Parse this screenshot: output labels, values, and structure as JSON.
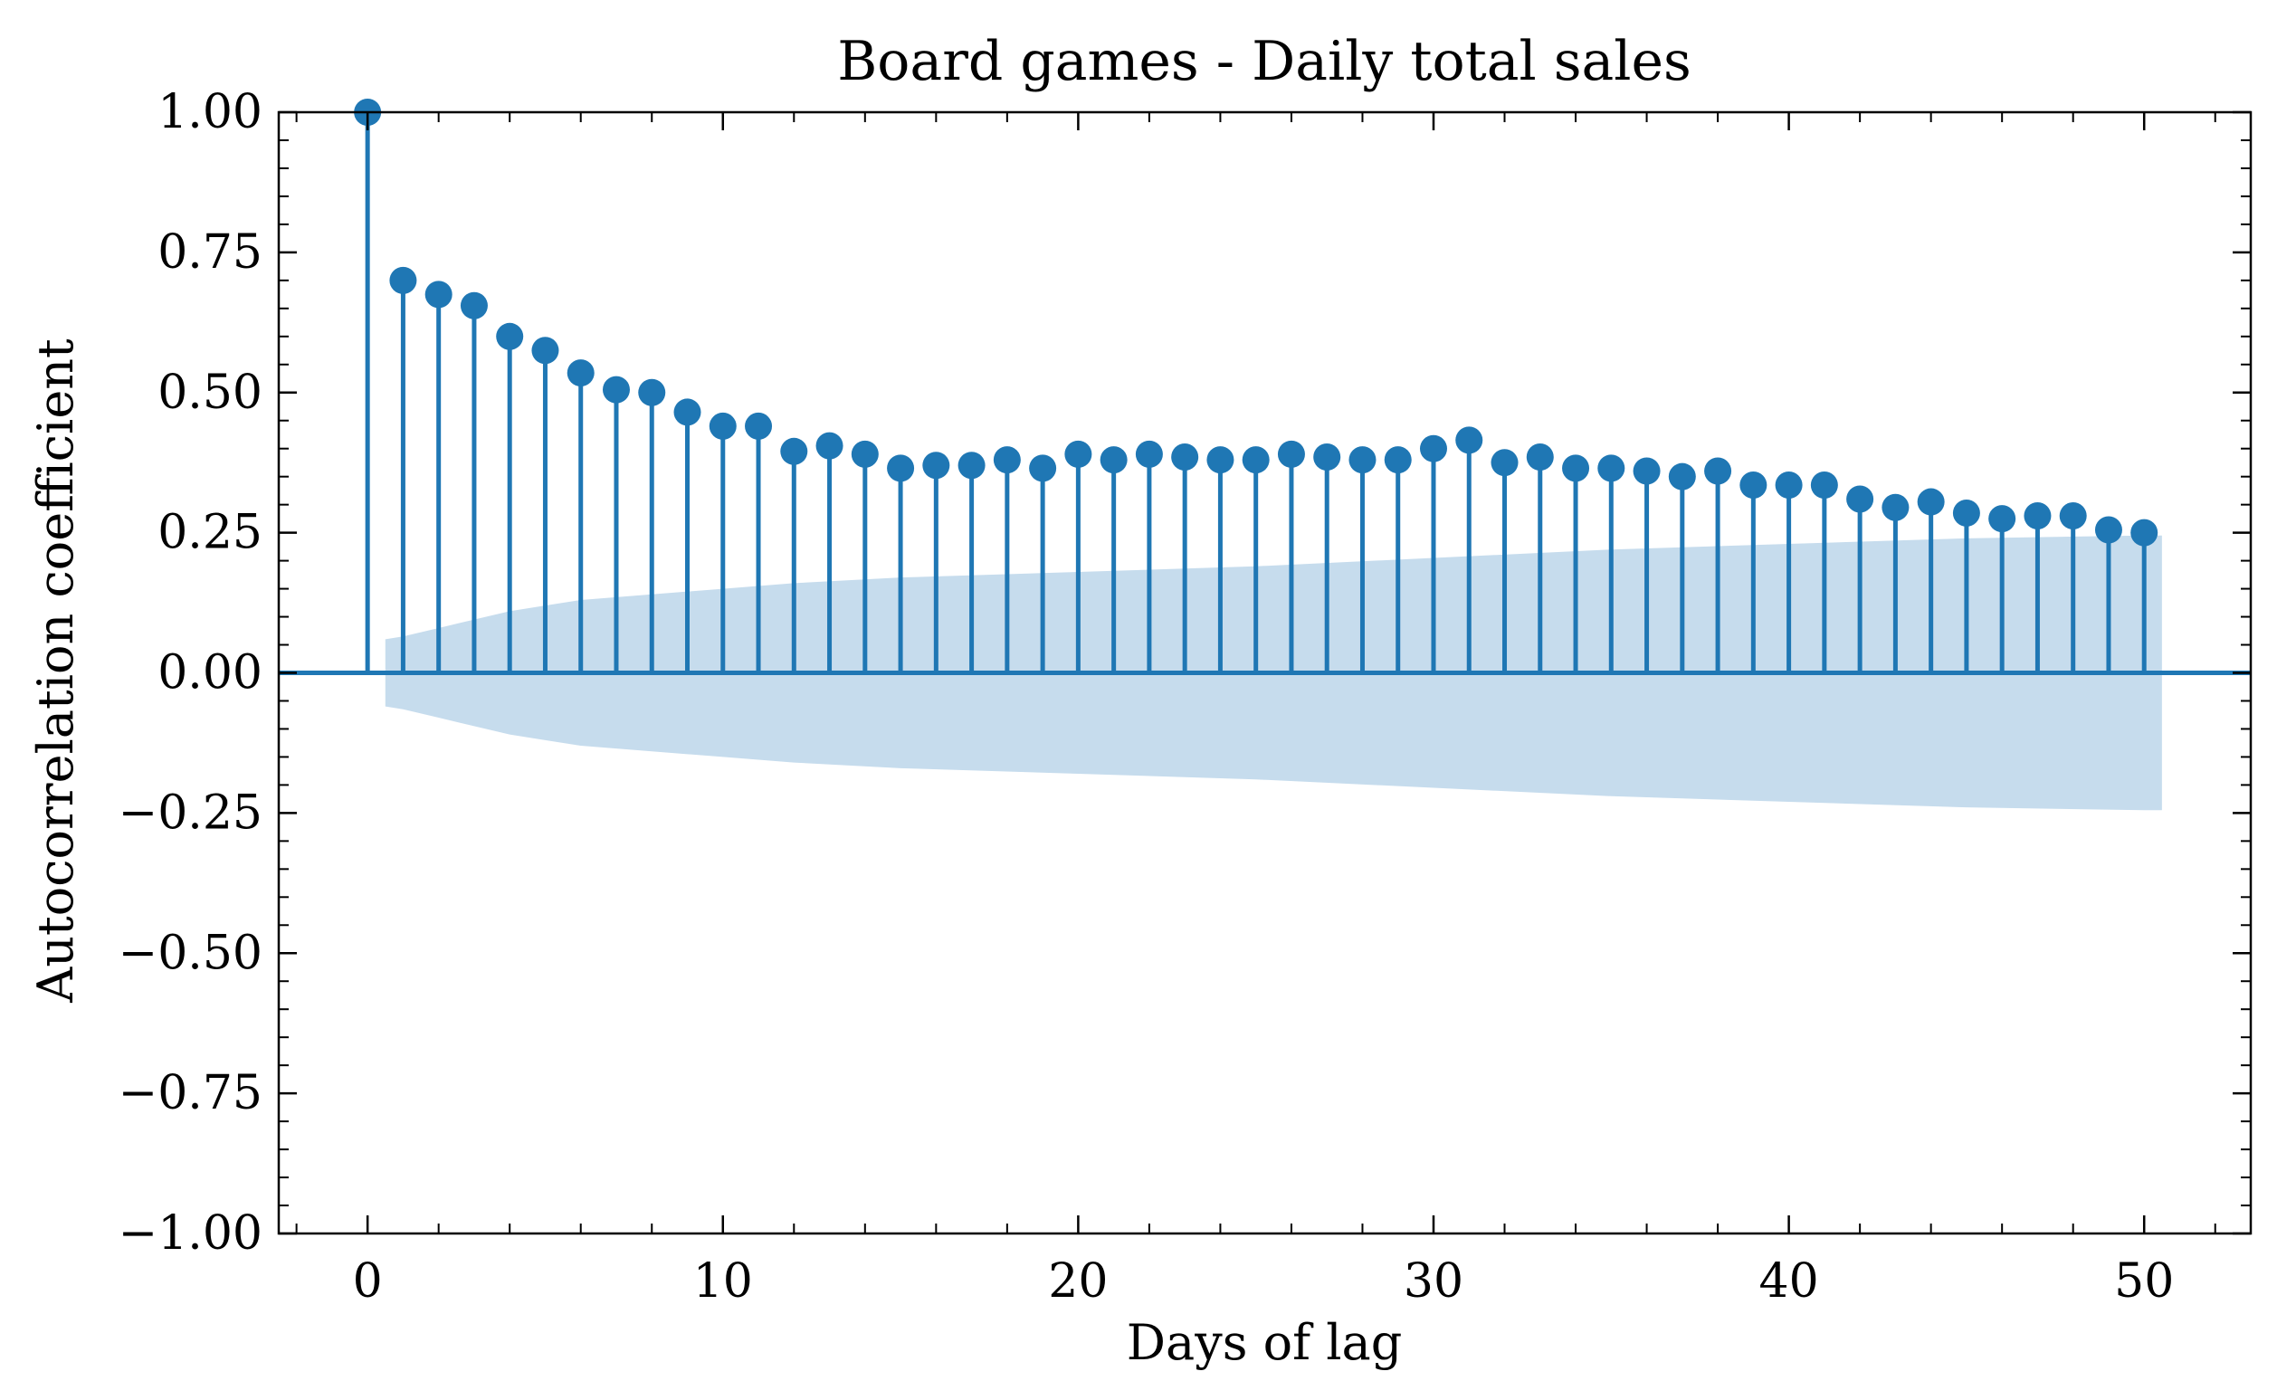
{
  "chart_data": {
    "type": "stem",
    "title": "Board games - Daily total sales",
    "xlabel": "Days of lag",
    "ylabel": "Autocorrelation coefficient",
    "xlim": [
      -2.5,
      53
    ],
    "ylim": [
      -1.0,
      1.0
    ],
    "xticks": [
      0,
      10,
      20,
      30,
      40,
      50
    ],
    "xtick_labels": [
      "0",
      "10",
      "20",
      "30",
      "40",
      "50"
    ],
    "yticks": [
      -1.0,
      -0.75,
      -0.5,
      -0.25,
      0.0,
      0.25,
      0.5,
      0.75,
      1.0
    ],
    "ytick_labels": [
      "−1.00",
      "−0.75",
      "−0.50",
      "−0.25",
      "0.00",
      "0.25",
      "0.50",
      "0.75",
      "1.00"
    ],
    "grid": false,
    "colors": {
      "series": "#1f77b4",
      "confidence_band": "#c6dced"
    },
    "x": [
      0,
      1,
      2,
      3,
      4,
      5,
      6,
      7,
      8,
      9,
      10,
      11,
      12,
      13,
      14,
      15,
      16,
      17,
      18,
      19,
      20,
      21,
      22,
      23,
      24,
      25,
      26,
      27,
      28,
      29,
      30,
      31,
      32,
      33,
      34,
      35,
      36,
      37,
      38,
      39,
      40,
      41,
      42,
      43,
      44,
      45,
      46,
      47,
      48,
      49,
      50
    ],
    "values": [
      1.0,
      0.7,
      0.675,
      0.655,
      0.6,
      0.575,
      0.535,
      0.505,
      0.5,
      0.465,
      0.44,
      0.44,
      0.395,
      0.405,
      0.39,
      0.365,
      0.37,
      0.37,
      0.38,
      0.365,
      0.39,
      0.38,
      0.39,
      0.385,
      0.38,
      0.38,
      0.39,
      0.385,
      0.38,
      0.38,
      0.4,
      0.415,
      0.375,
      0.385,
      0.365,
      0.365,
      0.36,
      0.35,
      0.36,
      0.335,
      0.335,
      0.335,
      0.31,
      0.295,
      0.305,
      0.285,
      0.275,
      0.28,
      0.28,
      0.255,
      0.25
    ],
    "confidence_band": {
      "x": [
        0.5,
        1,
        2,
        3,
        4,
        5,
        6,
        7,
        8,
        9,
        10,
        12,
        15,
        20,
        25,
        30,
        35,
        40,
        45,
        50,
        50.5
      ],
      "upper": [
        0.06,
        0.065,
        0.08,
        0.095,
        0.11,
        0.12,
        0.13,
        0.135,
        0.14,
        0.145,
        0.15,
        0.16,
        0.17,
        0.18,
        0.19,
        0.205,
        0.22,
        0.23,
        0.24,
        0.245,
        0.245
      ],
      "lower": [
        -0.06,
        -0.065,
        -0.08,
        -0.095,
        -0.11,
        -0.12,
        -0.13,
        -0.135,
        -0.14,
        -0.145,
        -0.15,
        -0.16,
        -0.17,
        -0.18,
        -0.19,
        -0.205,
        -0.22,
        -0.23,
        -0.24,
        -0.245,
        -0.245
      ]
    }
  }
}
